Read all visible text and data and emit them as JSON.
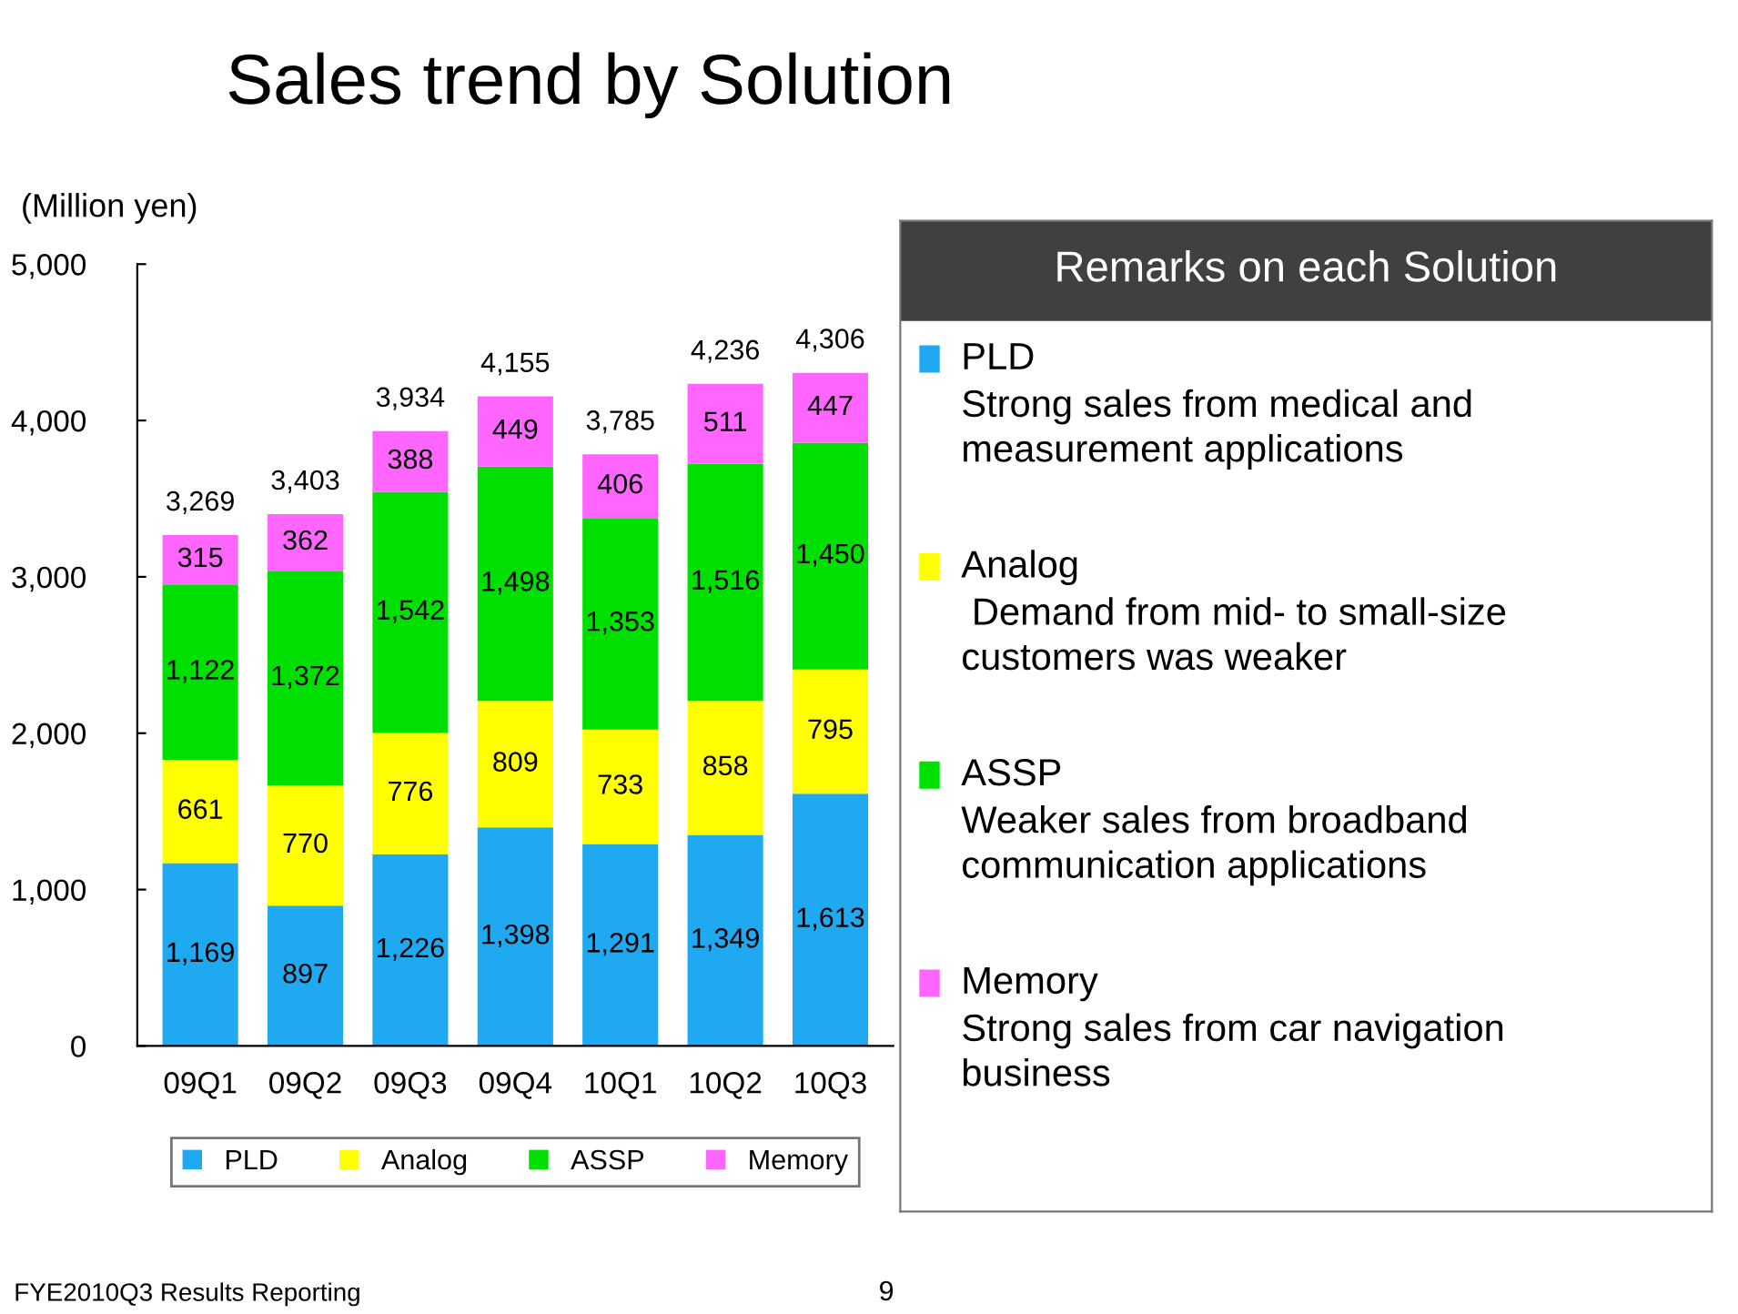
{
  "chart_data": [
    {
      "type": "bar",
      "title": "Sales trend by Solution",
      "ylabel": "(Million yen)",
      "stacked": true,
      "categories": [
        "09Q1",
        "09Q2",
        "09Q3",
        "09Q4",
        "10Q1",
        "10Q2",
        "10Q3"
      ],
      "series": [
        {
          "name": "PLD",
          "color": "#1ea9f0",
          "values": [
            1169,
            897,
            1226,
            1398,
            1291,
            1349,
            1613
          ],
          "value_labels": [
            "1,169",
            "897",
            "1,226",
            "1,398",
            "1,291",
            "1,349",
            "1,613"
          ]
        },
        {
          "name": "Analog",
          "color": "#ffff00",
          "values": [
            661,
            770,
            776,
            809,
            733,
            858,
            795
          ],
          "value_labels": [
            "661",
            "770",
            "776",
            "809",
            "733",
            "858",
            "795"
          ]
        },
        {
          "name": "ASSP",
          "color": "#00e000",
          "values": [
            1122,
            1372,
            1542,
            1498,
            1353,
            1516,
            1450
          ],
          "value_labels": [
            "1,122",
            "1,372",
            "1,542",
            "1,498",
            "1,353",
            "1,516",
            "1,450"
          ]
        },
        {
          "name": "Memory",
          "color": "#ff66ff",
          "values": [
            315,
            362,
            388,
            449,
            406,
            511,
            447
          ],
          "value_labels": [
            "315",
            "362",
            "388",
            "449",
            "406",
            "511",
            "447"
          ]
        }
      ],
      "totals": [
        "3,269",
        "3,403",
        "3,934",
        "4,155",
        "3,785",
        "4,236",
        "4,306"
      ],
      "ylim": [
        0,
        5000
      ],
      "yticks": [
        0,
        {
          "value": 1000,
          "label": "1,000"
        },
        {
          "value": 2000,
          "label": "2,000"
        },
        {
          "value": 3000,
          "label": "3,000"
        },
        {
          "value": 4000,
          "label": "4,000"
        },
        {
          "value": 5000,
          "label": "5,000"
        }
      ],
      "grid": false,
      "legend": "bottom",
      "annotations": [
        "FYE2010Q3 Results Reporting",
        "9"
      ]
    },
    {
      "type": "other",
      "title": "Remarks on each Solution",
      "categories": [
        "PLD",
        "Analog",
        "ASSP",
        "Memory"
      ],
      "colors": [
        "#1ea9f0",
        "#ffff00",
        "#00e000",
        "#ff66ff"
      ],
      "annotations": [
        "Strong sales from medical and\nmeasurement applications",
        " Demand from mid- to small-size\ncustomers was weaker",
        "Weaker sales from broadband\ncommunication applications",
        "Strong sales from car navigation\nbusiness"
      ]
    }
  ]
}
